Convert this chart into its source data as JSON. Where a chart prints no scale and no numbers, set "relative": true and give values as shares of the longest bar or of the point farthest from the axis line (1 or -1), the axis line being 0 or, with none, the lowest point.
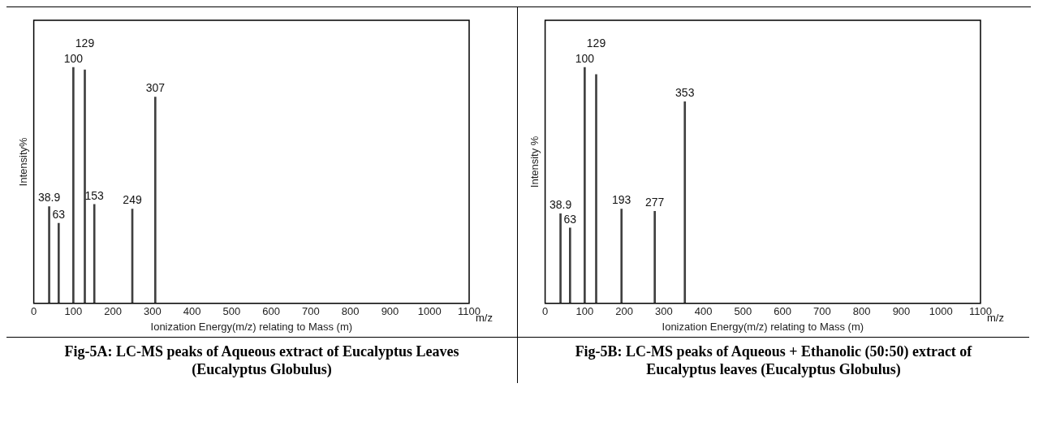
{
  "chart_data": [
    {
      "type": "bar",
      "relative": true,
      "color": "#404040",
      "x": [
        38.9,
        63,
        100,
        129,
        153,
        249,
        307
      ],
      "values": [
        0.41,
        0.34,
        1,
        0.99,
        0.42,
        0.4,
        0.875
      ],
      "xlim": [
        0,
        1100
      ],
      "xticks": [
        0,
        100,
        200,
        300,
        400,
        500,
        600,
        700,
        800,
        900,
        1000,
        1100
      ],
      "xlabel": "Ionization Energy(m/z) relating to Mass (m)",
      "ylabel": "Intensity%",
      "grid": false,
      "legend": false,
      "title": "Fig-5A: LC-MS peaks of Aqueous extract of Eucalyptus Leaves (Eucalyptus Globulus)",
      "annotations": [
        "m/z",
        {
          "text": "100",
          "x": 100,
          "y": 1
        },
        {
          "text": "38.9",
          "x": 38.9,
          "y": 0.41
        },
        {
          "text": "63",
          "x": 63,
          "y": 0.34
        },
        {
          "text": "129",
          "x": 129,
          "y": 0.99
        },
        {
          "text": "153",
          "x": 153,
          "y": 0.42
        },
        {
          "text": "249",
          "x": 249,
          "y": 0.4
        },
        {
          "text": "307",
          "x": 307,
          "y": 0.875
        }
      ]
    },
    {
      "type": "bar",
      "relative": true,
      "color": "#404040",
      "x": [
        38.9,
        63,
        100,
        129,
        193,
        277,
        353
      ],
      "values": [
        0.38,
        0.32,
        1,
        0.97,
        0.4,
        0.39,
        0.855
      ],
      "xlim": [
        0,
        1100
      ],
      "xticks": [
        0,
        100,
        200,
        300,
        400,
        500,
        600,
        700,
        800,
        900,
        1000,
        1100
      ],
      "xlabel": "Ionization Energy(m/z) relating to Mass (m)",
      "ylabel": "Intensity %",
      "grid": false,
      "legend": false,
      "title": "Fig-5B: LC-MS peaks of Aqueous + Ethanolic (50:50) extract of Eucalyptus leaves (Eucalyptus Globulus)",
      "annotations": [
        "m/z",
        {
          "text": "100",
          "x": 100,
          "y": 1
        },
        {
          "text": "38.9",
          "x": 38.9,
          "y": 0.38
        },
        {
          "text": "63",
          "x": 63,
          "y": 0.32
        },
        {
          "text": "129",
          "x": 129,
          "y": 0.97
        },
        {
          "text": "193",
          "x": 193,
          "y": 0.4
        },
        {
          "text": "277",
          "x": 277,
          "y": 0.39
        },
        {
          "text": "353",
          "x": 353,
          "y": 0.855
        }
      ]
    }
  ]
}
